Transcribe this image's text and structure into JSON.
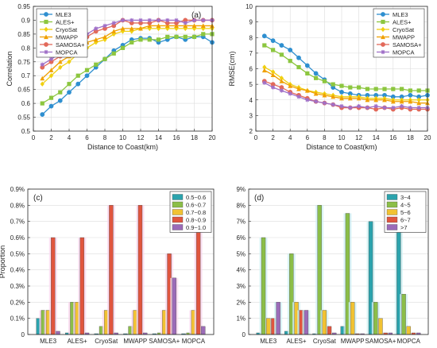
{
  "chart_data": [
    {
      "panel": "(a)",
      "type": "line",
      "xlabel": "Distance to Coast(km)",
      "ylabel": "Correlation",
      "xlim": [
        0,
        20
      ],
      "ylim": [
        0.5,
        0.95
      ],
      "xticks": [
        0,
        2,
        4,
        6,
        8,
        10,
        12,
        14,
        16,
        18,
        20
      ],
      "yticks": [
        0.5,
        0.55,
        0.6,
        0.65,
        0.7,
        0.75,
        0.8,
        0.85,
        0.9,
        0.95
      ],
      "yticklabels": [
        "0.5",
        "0.55",
        "0.6",
        "0.65",
        "0.7",
        "0.75",
        "0.8",
        "0.85",
        "0.9",
        "0.95"
      ],
      "grid": true,
      "legend_position": "top-left",
      "x": [
        1,
        2,
        3,
        4,
        5,
        6,
        7,
        8,
        9,
        10,
        11,
        12,
        13,
        14,
        15,
        16,
        17,
        18,
        19,
        20
      ],
      "series": [
        {
          "name": "MLE3",
          "color": "#2e8fd0",
          "marker": "circle",
          "values": [
            0.56,
            0.59,
            0.61,
            0.64,
            0.67,
            0.7,
            0.73,
            0.76,
            0.79,
            0.81,
            0.83,
            0.835,
            0.835,
            0.82,
            0.83,
            0.84,
            0.83,
            0.84,
            0.84,
            0.82
          ]
        },
        {
          "name": "ALES+",
          "color": "#8cc63f",
          "marker": "square",
          "values": [
            0.6,
            0.62,
            0.64,
            0.67,
            0.7,
            0.72,
            0.74,
            0.76,
            0.78,
            0.8,
            0.82,
            0.83,
            0.83,
            0.83,
            0.84,
            0.84,
            0.84,
            0.84,
            0.85,
            0.85
          ]
        },
        {
          "name": "CryoSat",
          "color": "#f0d010",
          "marker": "diamond",
          "values": [
            0.67,
            0.7,
            0.73,
            0.75,
            0.78,
            0.8,
            0.82,
            0.83,
            0.85,
            0.86,
            0.86,
            0.87,
            0.87,
            0.87,
            0.87,
            0.87,
            0.87,
            0.87,
            0.87,
            0.87
          ]
        },
        {
          "name": "MWAPP",
          "color": "#f0a000",
          "marker": "triangle",
          "values": [
            0.69,
            0.72,
            0.75,
            0.77,
            0.8,
            0.82,
            0.83,
            0.84,
            0.86,
            0.87,
            0.87,
            0.87,
            0.88,
            0.88,
            0.88,
            0.88,
            0.88,
            0.88,
            0.88,
            0.88
          ]
        },
        {
          "name": "SAMOSA+",
          "color": "#e2695a",
          "marker": "circle",
          "values": [
            0.73,
            0.75,
            0.77,
            0.79,
            0.82,
            0.84,
            0.86,
            0.87,
            0.88,
            0.9,
            0.89,
            0.89,
            0.89,
            0.9,
            0.89,
            0.89,
            0.9,
            0.9,
            0.9,
            0.9
          ]
        },
        {
          "name": "MOPCA",
          "color": "#a070c8",
          "marker": "star",
          "values": [
            0.74,
            0.76,
            0.78,
            0.8,
            0.83,
            0.85,
            0.87,
            0.88,
            0.89,
            0.9,
            0.9,
            0.9,
            0.9,
            0.9,
            0.9,
            0.9,
            0.89,
            0.9,
            0.9,
            0.9
          ]
        }
      ]
    },
    {
      "panel": "(b)",
      "type": "line",
      "xlabel": "Distance to Coast(km)",
      "ylabel": "RMSE(cm)",
      "xlim": [
        0,
        20
      ],
      "ylim": [
        2,
        10
      ],
      "xticks": [
        0,
        2,
        4,
        6,
        8,
        10,
        12,
        14,
        16,
        18,
        20
      ],
      "yticks": [
        2,
        3,
        4,
        5,
        6,
        7,
        8,
        9,
        10
      ],
      "yticklabels": [
        "2",
        "3",
        "4",
        "5",
        "6",
        "7",
        "8",
        "9",
        "10"
      ],
      "grid": true,
      "legend_position": "top-right",
      "x": [
        1,
        2,
        3,
        4,
        5,
        6,
        7,
        8,
        9,
        10,
        11,
        12,
        13,
        14,
        15,
        16,
        17,
        18,
        19,
        20
      ],
      "series": [
        {
          "name": "MLE3",
          "color": "#2e8fd0",
          "marker": "circle",
          "values": [
            8.1,
            7.8,
            7.5,
            7.2,
            6.7,
            6.2,
            5.7,
            5.3,
            4.8,
            4.5,
            4.4,
            4.3,
            4.3,
            4.3,
            4.3,
            4.2,
            4.2,
            4.3,
            4.2,
            4.3
          ]
        },
        {
          "name": "ALES+",
          "color": "#8cc63f",
          "marker": "square",
          "values": [
            7.5,
            7.2,
            6.9,
            6.5,
            6.1,
            5.7,
            5.4,
            5.2,
            5.0,
            4.9,
            4.8,
            4.8,
            4.7,
            4.7,
            4.7,
            4.7,
            4.7,
            4.6,
            4.6,
            4.6
          ]
        },
        {
          "name": "CryoSat",
          "color": "#f0d010",
          "marker": "diamond",
          "values": [
            6.1,
            5.8,
            5.4,
            5.0,
            4.8,
            4.6,
            4.5,
            4.4,
            4.3,
            4.2,
            4.2,
            4.2,
            4.1,
            4.1,
            4.1,
            4.0,
            4.0,
            4.0,
            4.0,
            4.0
          ]
        },
        {
          "name": "MWAPP",
          "color": "#f0a000",
          "marker": "triangle",
          "values": [
            5.9,
            5.6,
            5.2,
            4.9,
            4.7,
            4.6,
            4.4,
            4.3,
            4.2,
            4.1,
            4.1,
            4.1,
            4.0,
            4.0,
            4.0,
            3.9,
            3.9,
            3.9,
            3.8,
            3.8
          ]
        },
        {
          "name": "SAMOSA+",
          "color": "#e2695a",
          "marker": "circle",
          "values": [
            5.2,
            5.0,
            4.8,
            4.5,
            4.3,
            4.1,
            3.9,
            3.8,
            3.7,
            3.5,
            3.5,
            3.5,
            3.5,
            3.4,
            3.5,
            3.4,
            3.5,
            3.4,
            3.4,
            3.4
          ]
        },
        {
          "name": "MOPCA",
          "color": "#a070c8",
          "marker": "star",
          "values": [
            5.1,
            4.8,
            4.6,
            4.4,
            4.2,
            4.0,
            3.9,
            3.8,
            3.7,
            3.6,
            3.5,
            3.6,
            3.5,
            3.6,
            3.5,
            3.5,
            3.6,
            3.5,
            3.5,
            3.5
          ]
        }
      ]
    },
    {
      "panel": "(c)",
      "type": "bar",
      "xlabel": "",
      "ylabel": "Proportion",
      "ylim": [
        0,
        0.009
      ],
      "yticks": [
        0,
        0.001,
        0.002,
        0.003,
        0.004,
        0.005,
        0.006,
        0.007,
        0.008,
        0.009
      ],
      "yticklabels": [
        "0",
        "0.1%",
        "0.2%",
        "0.3%",
        "0.4%",
        "0.5%",
        "0.6%",
        "0.7%",
        "0.8%",
        "0.9%"
      ],
      "grid": true,
      "legend_position": "top-right",
      "categories": [
        "MLE3",
        "ALES+",
        "CryoSat",
        "MWAPP",
        "SAMOSA+",
        "MOPCA"
      ],
      "series": [
        {
          "name": "0.5~0.6",
          "color": "#2ba3ad",
          "values": [
            0.001,
            0.0001,
            5e-05,
            5e-05,
            5e-05,
            5e-05
          ]
        },
        {
          "name": "0.6~0.7",
          "color": "#8bbe48",
          "values": [
            0.0015,
            0.002,
            0.0005,
            0.0005,
            0.0001,
            0.0001
          ]
        },
        {
          "name": "0.7~0.8",
          "color": "#f1c232",
          "values": [
            0.0015,
            0.002,
            0.0015,
            0.0015,
            0.0015,
            0.0015
          ]
        },
        {
          "name": "0.8~0.9",
          "color": "#e0553e",
          "values": [
            0.006,
            0.006,
            0.008,
            0.008,
            0.005,
            0.0065
          ]
        },
        {
          "name": "0.9~1.0",
          "color": "#9b6bb8",
          "values": [
            0.0002,
            0.0001,
            0.0001,
            0.0001,
            0.0035,
            0.0005
          ]
        }
      ]
    },
    {
      "panel": "(d)",
      "type": "bar",
      "xlabel": "",
      "ylabel": "",
      "ylim": [
        0,
        0.09
      ],
      "yticks": [
        0,
        0.01,
        0.02,
        0.03,
        0.04,
        0.05,
        0.06,
        0.07,
        0.08,
        0.09
      ],
      "yticklabels": [
        "0",
        "1%",
        "2%",
        "3%",
        "4%",
        "5%",
        "6%",
        "7%",
        "8%",
        "9%"
      ],
      "grid": true,
      "legend_position": "top-right",
      "categories": [
        "MLE3",
        "ALES+",
        "CryoSat",
        "MWAPP",
        "SAMOSA+",
        "MOPCA"
      ],
      "series": [
        {
          "name": "3~4",
          "color": "#2ba3ad",
          "values": [
            0.001,
            0.002,
            0.0005,
            0.005,
            0.07,
            0.065
          ]
        },
        {
          "name": "4~5",
          "color": "#8bbe48",
          "values": [
            0.06,
            0.05,
            0.08,
            0.075,
            0.02,
            0.025
          ]
        },
        {
          "name": "5~6",
          "color": "#f1c232",
          "values": [
            0.01,
            0.02,
            0.015,
            0.02,
            0.01,
            0.005
          ]
        },
        {
          "name": "6~7",
          "color": "#e0553e",
          "values": [
            0.01,
            0.015,
            0.005,
            0.0005,
            0.001,
            0.001
          ]
        },
        {
          "name": ">7",
          "color": "#9b6bb8",
          "values": [
            0.02,
            0.015,
            0.001,
            0.0005,
            0.001,
            0.001
          ]
        }
      ]
    }
  ]
}
